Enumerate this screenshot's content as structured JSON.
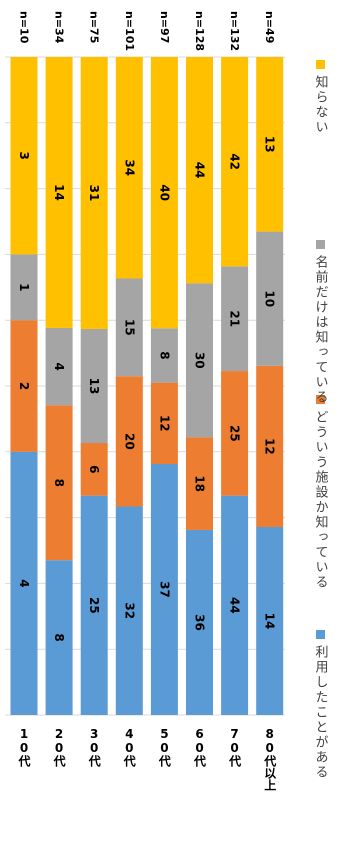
{
  "chart_data": {
    "type": "bar",
    "orientation": "vertical",
    "stacked": "percent",
    "categories": [
      "10代",
      "20代",
      "30代",
      "40代",
      "50代",
      "60代",
      "70代",
      "80代以上"
    ],
    "counts": [
      "n=10",
      "n=34",
      "n=75",
      "n=101",
      "n=97",
      "n=128",
      "n=132",
      "n=49"
    ],
    "series": [
      {
        "name": "利用したことがある",
        "color": "#5B9BD5",
        "values": [
          4,
          8,
          25,
          32,
          37,
          36,
          44,
          14
        ]
      },
      {
        "name": "どういう施設か知っている",
        "color": "#ED7D31",
        "values": [
          2,
          8,
          6,
          20,
          12,
          18,
          25,
          12
        ]
      },
      {
        "name": "名前だけは知っている",
        "color": "#A5A5A5",
        "values": [
          1,
          4,
          13,
          15,
          8,
          30,
          21,
          10
        ]
      },
      {
        "name": "知らない",
        "color": "#FFC000",
        "values": [
          3,
          14,
          31,
          34,
          40,
          44,
          42,
          13
        ]
      }
    ],
    "grid": true,
    "legend_position": "right"
  }
}
